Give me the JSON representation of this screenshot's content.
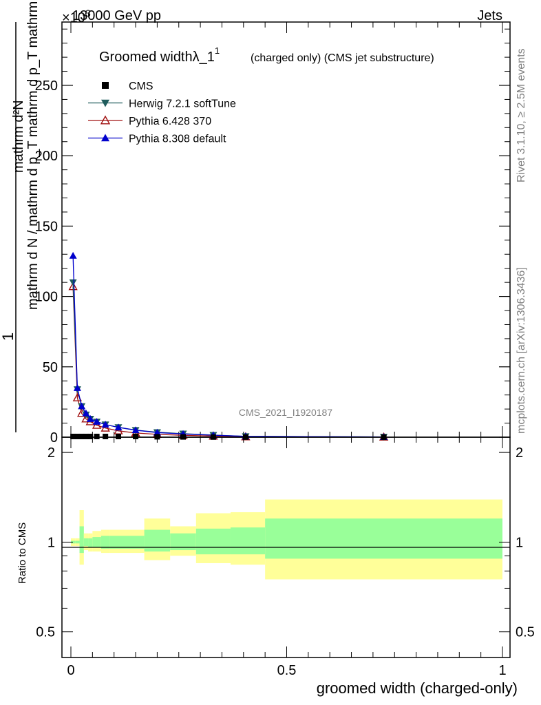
{
  "header": {
    "left": "13000 GeV pp",
    "right": "Jets",
    "exponent": "×10",
    "exponent_power": "3"
  },
  "side_labels": {
    "rivet": "Rivet 3.1.10, ≥ 2.5M events",
    "mcplots": "mcplots.cern.ch [arXiv:1306.3436]"
  },
  "watermark": "CMS_2021_I1920187",
  "chart_data": [
    {
      "type": "line",
      "title": "Groomed widthλ_1",
      "title_sup": "1",
      "subtitle": "(charged only) (CMS jet substructure)",
      "ylabel_numerator": "1",
      "ylabel_denominator": "mathrm d N / mathrm d p_T mathrm d p_T mathrm d lambda",
      "ylabel_fraction_top": "mathrm d²N",
      "xlim": [
        0,
        1
      ],
      "ylim": [
        0,
        295
      ],
      "yticks": [
        "0",
        "50",
        "100",
        "150",
        "200",
        "250"
      ],
      "ytick_values": [
        0,
        50,
        100,
        150,
        200,
        250
      ],
      "legend": {
        "position": "top-left",
        "entries": [
          "CMS",
          "Herwig 7.2.1 softTune",
          "Pythia 6.428 370",
          "Pythia 8.308 default"
        ]
      },
      "series": [
        {
          "name": "CMS",
          "color": "#000000",
          "marker": "square",
          "x": [
            0.005,
            0.015,
            0.025,
            0.035,
            0.045,
            0.06,
            0.08,
            0.11,
            0.15,
            0.2,
            0.26,
            0.33,
            0.405,
            0.725
          ],
          "y": [
            0.5,
            0.5,
            0.5,
            0.5,
            0.5,
            0.5,
            0.5,
            0.5,
            0.5,
            0.3,
            0.2,
            0.1,
            0.1,
            0.05
          ]
        },
        {
          "name": "Herwig 7.2.1 softTune",
          "color": "#1f5c5c",
          "marker": "triangle-down",
          "x": [
            0.005,
            0.015,
            0.025,
            0.035,
            0.045,
            0.06,
            0.08,
            0.11,
            0.15,
            0.2,
            0.26,
            0.33,
            0.405,
            0.725
          ],
          "y": [
            110,
            34,
            22,
            16,
            13,
            11,
            9,
            7,
            5,
            3.5,
            2.5,
            1.5,
            0.6,
            0.2
          ]
        },
        {
          "name": "Pythia 6.428 370",
          "color": "#a01010",
          "marker": "triangle-up-open",
          "x": [
            0.005,
            0.015,
            0.025,
            0.035,
            0.045,
            0.06,
            0.08,
            0.11,
            0.15,
            0.2,
            0.26,
            0.33,
            0.405,
            0.725
          ],
          "y": [
            107,
            28,
            17,
            13,
            11,
            8.5,
            6.5,
            4.5,
            3,
            2,
            1.3,
            0.8,
            0.3,
            0.1
          ]
        },
        {
          "name": "Pythia 8.308 default",
          "color": "#0000cc",
          "marker": "triangle-up",
          "x": [
            0.005,
            0.015,
            0.025,
            0.035,
            0.045,
            0.06,
            0.08,
            0.11,
            0.15,
            0.2,
            0.26,
            0.33,
            0.405,
            0.725
          ],
          "y": [
            129,
            35,
            22,
            17,
            13,
            11,
            9,
            7,
            5,
            3.3,
            2.3,
            1.4,
            0.6,
            0.2
          ]
        }
      ]
    },
    {
      "type": "area",
      "ylabel": "Ratio to CMS",
      "xlabel": "groomed width (charged-only)",
      "xlim": [
        0,
        1
      ],
      "ylim": [
        0.41,
        2.25
      ],
      "yticks": [
        "0.5",
        "1",
        "2"
      ],
      "ytick_values": [
        0.5,
        1,
        2
      ],
      "xticks": [
        "0",
        "0.5",
        "1"
      ],
      "xtick_values": [
        0,
        0.5,
        1
      ],
      "bands": {
        "edges": [
          0,
          0.01,
          0.02,
          0.03,
          0.04,
          0.05,
          0.07,
          0.09,
          0.13,
          0.17,
          0.23,
          0.29,
          0.37,
          0.45,
          1.0
        ],
        "outer_low": [
          0.97,
          0.97,
          0.84,
          0.94,
          0.93,
          0.93,
          0.92,
          0.92,
          0.92,
          0.87,
          0.9,
          0.85,
          0.84,
          0.75
        ],
        "outer_high": [
          1.03,
          1.03,
          1.28,
          1.07,
          1.07,
          1.09,
          1.1,
          1.1,
          1.1,
          1.2,
          1.13,
          1.25,
          1.26,
          1.39
        ],
        "inner_low": [
          0.99,
          0.99,
          0.92,
          0.97,
          0.96,
          0.96,
          0.95,
          0.95,
          0.95,
          0.93,
          0.94,
          0.91,
          0.91,
          0.88
        ],
        "inner_high": [
          1.01,
          1.01,
          1.13,
          1.03,
          1.03,
          1.04,
          1.05,
          1.05,
          1.05,
          1.1,
          1.07,
          1.11,
          1.12,
          1.2
        ],
        "outer_color": "#ffff99",
        "inner_color": "#99ff99"
      }
    }
  ]
}
